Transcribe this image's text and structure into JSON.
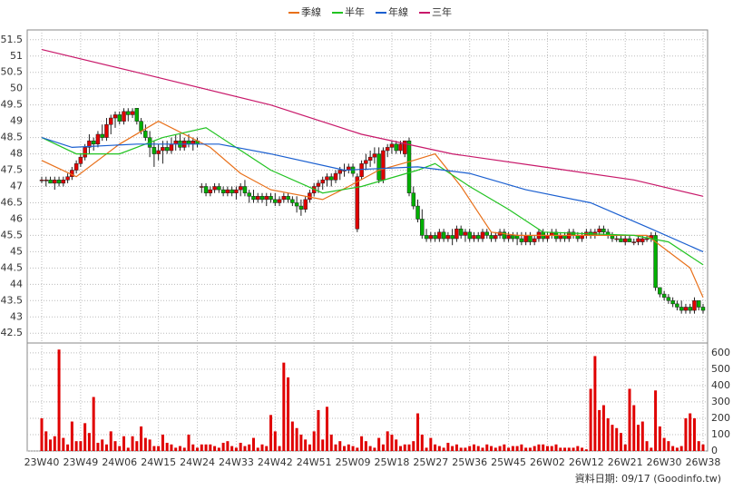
{
  "chart_data": {
    "type": "candlestick",
    "footnote": "資料日期: 09/17 (Goodinfo.tw)",
    "legend": "top",
    "grid": true,
    "up_color": "#e00000",
    "down_color": "#00b000",
    "ylim": [
      42.2,
      51.8
    ],
    "yticks": [
      42.5,
      43,
      43.5,
      44,
      44.5,
      45,
      45.5,
      46,
      46.5,
      47,
      47.5,
      48,
      48.5,
      49,
      49.5,
      50,
      50.5,
      51,
      51.5
    ],
    "categories": [
      "23W40",
      null,
      null,
      null,
      null,
      null,
      null,
      null,
      null,
      "23W49",
      null,
      null,
      null,
      null,
      null,
      null,
      null,
      null,
      "24W06",
      null,
      null,
      null,
      null,
      null,
      null,
      null,
      null,
      "24W15",
      null,
      null,
      null,
      null,
      null,
      null,
      null,
      null,
      "24W24",
      null,
      null,
      null,
      null,
      null,
      null,
      null,
      null,
      "24W33",
      null,
      null,
      null,
      null,
      null,
      null,
      null,
      null,
      "24W42",
      null,
      null,
      null,
      null,
      null,
      null,
      null,
      null,
      "24W51",
      null,
      null,
      null,
      null,
      null,
      null,
      null,
      null,
      "25W09",
      null,
      null,
      null,
      null,
      null,
      null,
      null,
      null,
      "25W18",
      null,
      null,
      null,
      null,
      null,
      null,
      null,
      null,
      "25W27",
      null,
      null,
      null,
      null,
      null,
      null,
      null,
      null,
      "25W36",
      null,
      null,
      null,
      null,
      null,
      null,
      null,
      null,
      "25W45",
      null,
      null,
      null,
      null,
      null,
      null,
      null,
      null,
      "26W02",
      null,
      null,
      null,
      null,
      null,
      null,
      null,
      null,
      "26W12",
      null,
      null,
      null,
      null,
      null,
      null,
      null,
      null,
      "26W21",
      null,
      null,
      null,
      null,
      null,
      null,
      null,
      null,
      "26W30",
      null,
      null,
      null,
      null,
      null,
      null,
      null,
      null,
      "26W38"
    ],
    "ohlc": [
      [
        47.2,
        47.3,
        47.1,
        47.2
      ],
      [
        47.2,
        47.3,
        47.0,
        47.2
      ],
      [
        47.2,
        47.3,
        47.1,
        47.1
      ],
      [
        47.1,
        47.3,
        46.9,
        47.2
      ],
      [
        47.2,
        47.3,
        47.0,
        47.1
      ],
      [
        47.1,
        47.3,
        47.0,
        47.2
      ],
      [
        47.2,
        47.4,
        47.1,
        47.3
      ],
      [
        47.3,
        47.6,
        47.2,
        47.5
      ],
      [
        47.5,
        47.8,
        47.4,
        47.7
      ],
      [
        47.7,
        48.0,
        47.6,
        47.9
      ],
      [
        47.9,
        48.3,
        47.8,
        48.2
      ],
      [
        48.2,
        48.6,
        48.0,
        48.4
      ],
      [
        48.4,
        48.5,
        48.1,
        48.3
      ],
      [
        48.3,
        48.7,
        48.2,
        48.6
      ],
      [
        48.6,
        48.9,
        48.4,
        48.5
      ],
      [
        48.5,
        49.1,
        48.4,
        48.9
      ],
      [
        48.9,
        49.2,
        48.6,
        49.1
      ],
      [
        49.1,
        49.3,
        48.8,
        49.2
      ],
      [
        49.2,
        49.3,
        48.9,
        49.0
      ],
      [
        49.0,
        49.4,
        48.9,
        49.3
      ],
      [
        49.3,
        49.4,
        49.0,
        49.2
      ],
      [
        49.2,
        49.4,
        49.1,
        49.3
      ],
      [
        49.4,
        49.4,
        48.9,
        49.0
      ],
      [
        49.0,
        49.1,
        48.6,
        48.7
      ],
      [
        48.7,
        48.9,
        48.4,
        48.5
      ],
      [
        48.5,
        48.7,
        47.9,
        48.2
      ],
      [
        48.2,
        48.4,
        47.6,
        48.0
      ],
      [
        48.0,
        48.3,
        47.8,
        48.1
      ],
      [
        48.1,
        48.4,
        47.7,
        48.2
      ],
      [
        48.2,
        48.4,
        48.0,
        48.1
      ],
      [
        48.1,
        48.5,
        48.0,
        48.3
      ],
      [
        48.3,
        48.6,
        48.1,
        48.4
      ],
      [
        48.4,
        48.6,
        48.1,
        48.2
      ],
      [
        48.2,
        48.5,
        48.1,
        48.4
      ],
      [
        48.4,
        48.6,
        48.2,
        48.3
      ],
      [
        48.3,
        48.5,
        48.1,
        48.4
      ],
      [
        48.4,
        48.5,
        48.2,
        48.3
      ],
      [
        47.0,
        47.1,
        46.8,
        47.0
      ],
      [
        47.0,
        47.1,
        46.7,
        46.8
      ],
      [
        46.8,
        47.0,
        46.7,
        46.9
      ],
      [
        46.9,
        47.1,
        46.8,
        47.0
      ],
      [
        47.0,
        47.1,
        46.8,
        46.9
      ],
      [
        46.9,
        47.0,
        46.7,
        46.8
      ],
      [
        46.8,
        47.0,
        46.7,
        46.9
      ],
      [
        46.9,
        47.0,
        46.7,
        46.8
      ],
      [
        46.8,
        47.0,
        46.6,
        46.9
      ],
      [
        46.9,
        47.1,
        46.7,
        47.0
      ],
      [
        47.0,
        47.2,
        46.7,
        46.8
      ],
      [
        46.8,
        46.9,
        46.5,
        46.7
      ],
      [
        46.7,
        46.9,
        46.5,
        46.6
      ],
      [
        46.6,
        46.8,
        46.5,
        46.7
      ],
      [
        46.7,
        46.8,
        46.5,
        46.6
      ],
      [
        46.6,
        46.8,
        46.4,
        46.7
      ],
      [
        46.7,
        46.8,
        46.5,
        46.6
      ],
      [
        46.6,
        46.8,
        46.4,
        46.5
      ],
      [
        46.5,
        46.7,
        46.4,
        46.6
      ],
      [
        46.6,
        46.8,
        46.5,
        46.7
      ],
      [
        46.7,
        46.8,
        46.5,
        46.6
      ],
      [
        46.6,
        46.7,
        46.4,
        46.5
      ],
      [
        46.5,
        46.7,
        46.2,
        46.4
      ],
      [
        46.4,
        46.6,
        46.1,
        46.3
      ],
      [
        46.3,
        46.7,
        46.2,
        46.6
      ],
      [
        46.6,
        46.9,
        46.5,
        46.8
      ],
      [
        46.8,
        47.1,
        46.7,
        47.0
      ],
      [
        47.0,
        47.2,
        46.8,
        47.1
      ],
      [
        47.1,
        47.3,
        46.9,
        47.2
      ],
      [
        47.2,
        47.4,
        47.0,
        47.3
      ],
      [
        47.3,
        47.4,
        47.0,
        47.2
      ],
      [
        47.2,
        47.5,
        47.1,
        47.4
      ],
      [
        47.4,
        47.6,
        47.2,
        47.5
      ],
      [
        47.5,
        47.7,
        47.3,
        47.5
      ],
      [
        47.5,
        47.7,
        47.4,
        47.6
      ],
      [
        47.6,
        47.7,
        47.3,
        47.4
      ],
      [
        45.7,
        47.4,
        45.6,
        47.3
      ],
      [
        47.3,
        47.8,
        47.2,
        47.7
      ],
      [
        47.7,
        48.0,
        47.5,
        47.8
      ],
      [
        47.8,
        48.1,
        47.6,
        47.9
      ],
      [
        47.9,
        48.2,
        47.7,
        48.0
      ],
      [
        48.0,
        48.2,
        47.1,
        47.2
      ],
      [
        47.2,
        48.2,
        47.1,
        48.1
      ],
      [
        48.1,
        48.3,
        47.9,
        48.2
      ],
      [
        48.2,
        48.4,
        48.0,
        48.3
      ],
      [
        48.3,
        48.4,
        48.0,
        48.1
      ],
      [
        48.1,
        48.4,
        48.0,
        48.3
      ],
      [
        48.0,
        48.4,
        47.9,
        48.4
      ],
      [
        48.4,
        48.5,
        46.7,
        46.8
      ],
      [
        46.8,
        47.0,
        46.3,
        46.4
      ],
      [
        46.4,
        46.6,
        45.9,
        46.0
      ],
      [
        46.0,
        46.3,
        45.4,
        45.5
      ],
      [
        45.5,
        45.7,
        45.3,
        45.4
      ],
      [
        45.4,
        45.6,
        45.3,
        45.5
      ],
      [
        45.5,
        45.6,
        45.3,
        45.4
      ],
      [
        45.4,
        45.7,
        45.3,
        45.6
      ],
      [
        45.6,
        45.7,
        45.3,
        45.4
      ],
      [
        45.4,
        45.6,
        45.3,
        45.5
      ],
      [
        45.5,
        45.7,
        45.2,
        45.4
      ],
      [
        45.4,
        45.8,
        45.3,
        45.7
      ],
      [
        45.7,
        45.8,
        45.4,
        45.5
      ],
      [
        45.5,
        45.7,
        45.3,
        45.6
      ],
      [
        45.6,
        45.7,
        45.3,
        45.4
      ],
      [
        45.4,
        45.6,
        45.3,
        45.5
      ],
      [
        45.5,
        45.6,
        45.3,
        45.4
      ],
      [
        45.4,
        45.7,
        45.3,
        45.6
      ],
      [
        45.6,
        45.7,
        45.4,
        45.5
      ],
      [
        45.5,
        45.6,
        45.3,
        45.4
      ],
      [
        45.4,
        45.6,
        45.3,
        45.5
      ],
      [
        45.5,
        45.7,
        45.4,
        45.6
      ],
      [
        45.6,
        45.7,
        45.3,
        45.4
      ],
      [
        45.4,
        45.6,
        45.3,
        45.5
      ],
      [
        45.5,
        45.6,
        45.3,
        45.4
      ],
      [
        45.5,
        45.6,
        45.2,
        45.4
      ],
      [
        45.4,
        45.6,
        45.2,
        45.3
      ],
      [
        45.3,
        45.6,
        45.2,
        45.5
      ],
      [
        45.5,
        45.6,
        45.2,
        45.3
      ],
      [
        45.3,
        45.5,
        45.2,
        45.4
      ],
      [
        45.4,
        45.7,
        45.3,
        45.6
      ],
      [
        45.6,
        45.7,
        45.3,
        45.4
      ],
      [
        45.4,
        45.6,
        45.3,
        45.5
      ],
      [
        45.5,
        45.7,
        45.4,
        45.6
      ],
      [
        45.6,
        45.7,
        45.3,
        45.4
      ],
      [
        45.4,
        45.6,
        45.3,
        45.5
      ],
      [
        45.5,
        45.6,
        45.3,
        45.4
      ],
      [
        45.4,
        45.7,
        45.3,
        45.6
      ],
      [
        45.6,
        45.7,
        45.4,
        45.5
      ],
      [
        45.5,
        45.6,
        45.3,
        45.4
      ],
      [
        45.4,
        45.6,
        45.3,
        45.5
      ],
      [
        45.5,
        45.7,
        45.4,
        45.6
      ],
      [
        45.6,
        45.7,
        45.4,
        45.5
      ],
      [
        45.5,
        45.7,
        45.4,
        45.6
      ],
      [
        45.6,
        45.8,
        45.5,
        45.7
      ],
      [
        45.7,
        45.8,
        45.5,
        45.6
      ],
      [
        45.6,
        45.7,
        45.4,
        45.5
      ],
      [
        45.5,
        45.6,
        45.3,
        45.4
      ],
      [
        45.4,
        45.5,
        45.3,
        45.4
      ],
      [
        45.4,
        45.5,
        45.3,
        45.3
      ],
      [
        45.3,
        45.5,
        45.2,
        45.4
      ],
      [
        45.4,
        45.5,
        45.3,
        45.3
      ],
      [
        45.3,
        45.4,
        45.2,
        45.3
      ],
      [
        45.3,
        45.5,
        45.2,
        45.4
      ],
      [
        45.3,
        45.5,
        45.2,
        45.4
      ],
      [
        45.4,
        45.5,
        45.3,
        45.4
      ],
      [
        45.4,
        45.6,
        45.3,
        45.5
      ],
      [
        45.5,
        45.6,
        43.8,
        43.9
      ],
      [
        43.9,
        43.9,
        43.6,
        43.7
      ],
      [
        43.7,
        43.8,
        43.5,
        43.6
      ],
      [
        43.6,
        43.7,
        43.4,
        43.5
      ],
      [
        43.5,
        43.6,
        43.3,
        43.4
      ],
      [
        43.4,
        43.5,
        43.2,
        43.3
      ],
      [
        43.3,
        43.5,
        43.1,
        43.2
      ],
      [
        43.2,
        43.4,
        43.1,
        43.3
      ],
      [
        43.3,
        43.4,
        43.1,
        43.2
      ],
      [
        43.2,
        43.6,
        43.1,
        43.5
      ],
      [
        43.5,
        43.5,
        43.2,
        43.3
      ],
      [
        43.3,
        43.4,
        43.1,
        43.2
      ]
    ],
    "volume": {
      "color": "#e00000",
      "ylim": [
        0,
        660
      ],
      "yticks": [
        0,
        100,
        200,
        300,
        400,
        500,
        600
      ],
      "values": [
        200,
        120,
        70,
        90,
        620,
        80,
        40,
        180,
        60,
        60,
        170,
        110,
        330,
        50,
        70,
        40,
        120,
        60,
        30,
        90,
        20,
        90,
        60,
        150,
        80,
        70,
        30,
        30,
        100,
        50,
        40,
        20,
        30,
        20,
        100,
        40,
        20,
        40,
        40,
        40,
        30,
        20,
        50,
        60,
        30,
        20,
        50,
        30,
        40,
        80,
        20,
        40,
        30,
        220,
        120,
        30,
        540,
        450,
        180,
        140,
        100,
        70,
        40,
        120,
        250,
        70,
        270,
        100,
        40,
        60,
        30,
        40,
        30,
        20,
        90,
        60,
        30,
        20,
        80,
        40,
        120,
        100,
        70,
        30,
        40,
        40,
        60,
        230,
        100,
        20,
        80,
        40,
        30,
        20,
        50,
        30,
        40,
        20,
        20,
        30,
        40,
        30,
        20,
        40,
        30,
        20,
        30,
        40,
        20,
        30,
        30,
        40,
        20,
        20,
        30,
        40,
        40,
        30,
        30,
        40,
        20,
        20,
        20,
        20,
        30,
        20,
        10,
        380,
        580,
        250,
        280,
        200,
        160,
        140,
        110,
        40,
        380,
        280,
        160,
        180,
        60,
        20,
        370,
        150,
        80,
        60,
        30,
        20,
        30,
        200,
        230,
        200,
        60,
        40
      ]
    },
    "series": [
      {
        "name": "季線",
        "color": "#e8701a",
        "x": [
          0,
          8,
          18,
          27,
          39,
          46,
          53,
          65,
          71,
          78,
          86,
          91,
          97,
          104,
          110,
          130,
          140,
          150,
          153
        ],
        "values": [
          47.8,
          47.3,
          48.3,
          49.0,
          48.2,
          47.4,
          46.9,
          46.6,
          47.0,
          47.5,
          47.8,
          48.0,
          47.0,
          45.6,
          45.5,
          45.5,
          45.5,
          44.5,
          43.6
        ]
      },
      {
        "name": "半年",
        "color": "#22c322",
        "x": [
          0,
          8,
          18,
          28,
          38,
          53,
          65,
          74,
          87,
          91,
          99,
          108,
          116,
          137,
          145,
          153
        ],
        "values": [
          48.5,
          48.0,
          48.0,
          48.5,
          48.8,
          47.5,
          46.8,
          47.0,
          47.5,
          47.7,
          47.0,
          46.3,
          45.6,
          45.5,
          45.3,
          44.6
        ]
      },
      {
        "name": "年線",
        "color": "#1a5fd0",
        "x": [
          0,
          7,
          22,
          41,
          53,
          70,
          87,
          99,
          112,
          127,
          141,
          153
        ],
        "values": [
          48.5,
          48.2,
          48.3,
          48.3,
          48.0,
          47.5,
          47.6,
          47.4,
          46.9,
          46.5,
          45.7,
          45.0
        ]
      },
      {
        "name": "三年",
        "color": "#c8186a",
        "x": [
          0,
          22,
          53,
          74,
          95,
          116,
          137,
          153
        ],
        "values": [
          51.2,
          50.5,
          49.5,
          48.6,
          48.0,
          47.6,
          47.2,
          46.7
        ]
      }
    ]
  }
}
